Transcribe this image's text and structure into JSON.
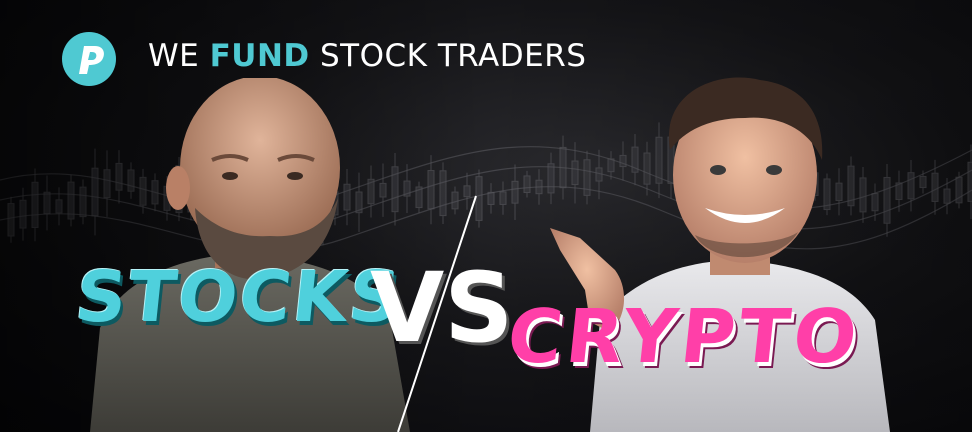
{
  "brand": {
    "logo_icon": "p-logo-icon",
    "accent_color": "#4fc9d2",
    "tagline_prefix": "WE ",
    "tagline_highlight": "FUND",
    "tagline_suffix": " STOCK TRADERS"
  },
  "headline": {
    "left_word": "STOCKS",
    "versus": "VS",
    "right_word": "CRYPTO",
    "left_color": "#4fd0dc",
    "right_color": "#ff3fa8"
  },
  "people": {
    "left": "bald-bearded-man-photo",
    "right": "smiling-man-pointing-photo"
  }
}
